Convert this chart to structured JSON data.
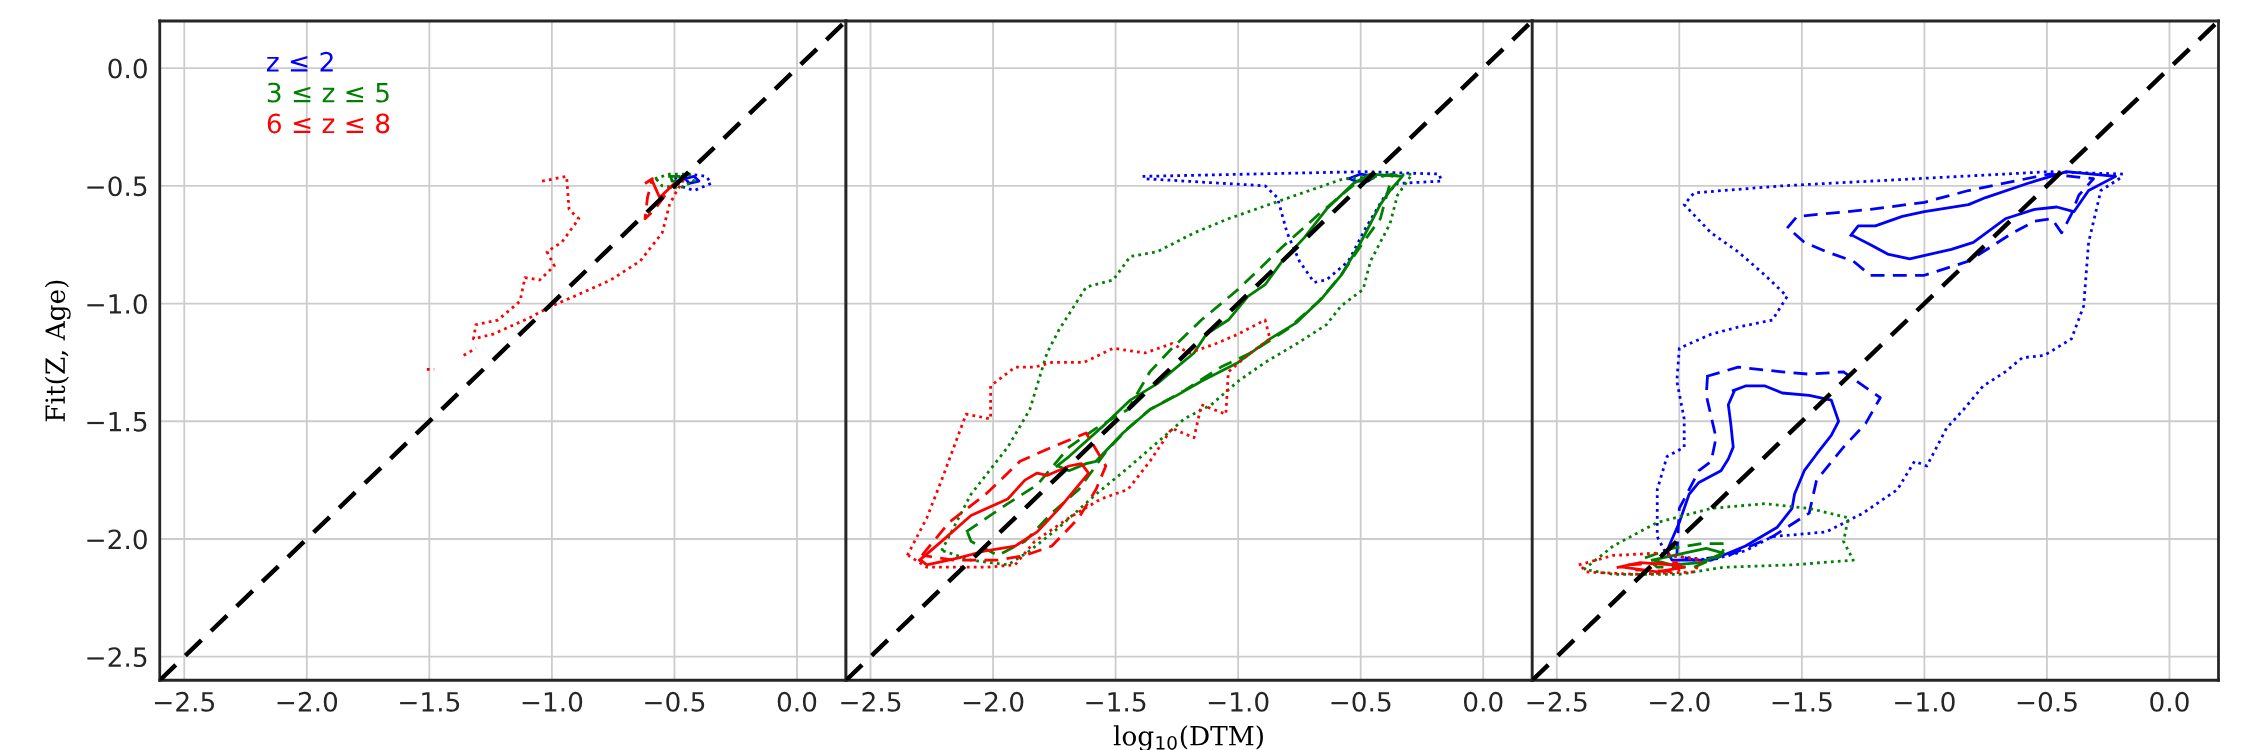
{
  "chart_data": [
    {
      "type": "line",
      "ylabel": "Fit(Z, Age)",
      "xlim": [
        -2.6,
        0.2
      ],
      "ylim": [
        -2.6,
        0.2
      ],
      "xticks": [
        {
          "value": -2.5,
          "label": "−2.5"
        },
        {
          "value": -2,
          "label": "−2.0"
        },
        {
          "value": -1.5,
          "label": "−1.5"
        },
        {
          "value": -1,
          "label": "−1.0"
        },
        {
          "value": -0.5,
          "label": "−0.5"
        },
        {
          "value": 0,
          "label": "0.0"
        }
      ],
      "yticks": [
        {
          "value": -2.5,
          "label": "−2.5"
        },
        {
          "value": -2,
          "label": "−2.0"
        },
        {
          "value": -1.5,
          "label": "−1.5"
        },
        {
          "value": -1,
          "label": "−1.0"
        },
        {
          "value": -0.5,
          "label": "−0.5"
        },
        {
          "value": 0,
          "label": "0.0"
        }
      ],
      "grid": true,
      "legend": "top left",
      "series": [
        {
          "color": "#000000",
          "line_style": "dashed",
          "x": [
            -2.6,
            0.2
          ],
          "values": [
            -2.6,
            0.2
          ]
        },
        {
          "name": "z ≤ 2",
          "color": "#0000ff",
          "line_style": "dotted",
          "x": [
            -0.5,
            -0.44,
            -0.37,
            -0.35,
            -0.42,
            -0.48,
            -0.495
          ],
          "values": [
            -0.47,
            -0.45,
            -0.46,
            -0.49,
            -0.52,
            -0.5,
            -0.47
          ]
        },
        {
          "color": "#0000ff",
          "line_style": "solid",
          "x": [
            -0.46,
            -0.42,
            -0.4,
            -0.44,
            -0.455
          ],
          "values": [
            -0.47,
            -0.46,
            -0.48,
            -0.49,
            -0.47
          ]
        },
        {
          "name": "3 ≤ z ≤ 5",
          "color": "#008000",
          "line_style": "dotted",
          "x": [
            -0.58,
            -0.52,
            -0.44,
            -0.42,
            -0.48,
            -0.55,
            -0.575
          ],
          "values": [
            -0.47,
            -0.45,
            -0.45,
            -0.48,
            -0.51,
            -0.5,
            -0.47
          ]
        },
        {
          "color": "#008000",
          "line_style": "solid",
          "x": [
            -0.52,
            -0.48,
            -0.47,
            -0.51,
            -0.515
          ],
          "values": [
            -0.46,
            -0.46,
            -0.48,
            -0.48,
            -0.46
          ]
        },
        {
          "name": "6 ≤ z ≤ 8",
          "color": "#ff0000",
          "line_style": "dotted",
          "x": [
            -1.04,
            -0.94,
            -0.93,
            -0.89,
            -0.96,
            -1.02,
            -0.99,
            -1.05,
            -1.11,
            -1.13,
            -1.22,
            -1.31,
            -1.32,
            -1.24,
            -1.09,
            -1.0,
            -0.91,
            -0.76,
            -0.64,
            -0.55,
            -0.52,
            -0.49,
            -0.46
          ],
          "values": [
            -0.48,
            -0.46,
            -0.6,
            -0.64,
            -0.74,
            -0.78,
            -0.84,
            -0.9,
            -0.89,
            -0.99,
            -1.07,
            -1.09,
            -1.15,
            -1.13,
            -1.06,
            -1.01,
            -0.97,
            -0.9,
            -0.82,
            -0.7,
            -0.58,
            -0.52,
            -0.47
          ]
        },
        {
          "color": "#ff0000",
          "line_style": "dotted",
          "x": [
            -1.36,
            -1.31
          ],
          "values": [
            -1.22,
            -1.19
          ]
        },
        {
          "color": "#ff0000",
          "line_style": "dotted",
          "x": [
            -1.51,
            -1.48
          ],
          "values": [
            -1.28,
            -1.28
          ]
        },
        {
          "color": "#ff0000",
          "line_style": "dashed",
          "x": [
            -0.62,
            -0.59,
            -0.61,
            -0.62,
            -0.58,
            -0.51
          ],
          "values": [
            -0.49,
            -0.47,
            -0.55,
            -0.64,
            -0.6,
            -0.5
          ]
        },
        {
          "color": "#ff0000",
          "line_style": "solid",
          "x": [
            -0.59,
            -0.56,
            -0.5
          ],
          "values": [
            -0.48,
            -0.55,
            -0.49
          ]
        }
      ]
    },
    {
      "type": "line",
      "xlabel": "log$_{10}$(DTM)",
      "xlim": [
        -2.6,
        0.2
      ],
      "ylim": [
        -2.6,
        0.2
      ],
      "xticks": [
        {
          "value": -2.5,
          "label": "−2.5"
        },
        {
          "value": -2,
          "label": "−2.0"
        },
        {
          "value": -1.5,
          "label": "−1.5"
        },
        {
          "value": -1,
          "label": "−1.0"
        },
        {
          "value": -0.5,
          "label": "−0.5"
        },
        {
          "value": 0,
          "label": "0.0"
        }
      ],
      "yticks": [
        -2.5,
        -2,
        -1.5,
        -1,
        -0.5,
        0
      ],
      "grid": true,
      "tick_labels": "x",
      "series": [
        {
          "color": "#000000",
          "line_style": "dashed",
          "x": [
            -2.6,
            0.2
          ],
          "values": [
            -2.6,
            0.2
          ]
        },
        {
          "color": "#0000ff",
          "line_style": "dotted",
          "x": [
            -1.39,
            -0.49,
            -0.18,
            -0.17,
            -0.35,
            -0.4,
            -0.48,
            -0.55,
            -0.64,
            -0.69,
            -0.75,
            -0.8,
            -0.84,
            -0.89,
            -1.38
          ],
          "values": [
            -0.46,
            -0.44,
            -0.45,
            -0.48,
            -0.49,
            -0.54,
            -0.68,
            -0.82,
            -0.9,
            -0.91,
            -0.82,
            -0.7,
            -0.55,
            -0.5,
            -0.47
          ]
        },
        {
          "color": "#0000ff",
          "line_style": "solid",
          "x": [
            -0.55,
            -0.5,
            -0.44,
            -0.47,
            -0.52,
            -0.545
          ],
          "values": [
            -0.47,
            -0.45,
            -0.46,
            -0.48,
            -0.48,
            -0.47
          ]
        },
        {
          "color": "#008000",
          "line_style": "dotted",
          "x": [
            -2.21,
            -2.09,
            -1.94,
            -1.85,
            -1.78,
            -1.73,
            -1.62,
            -1.51,
            -1.44,
            -1.33,
            -1.18,
            -1.04,
            -0.82,
            -0.57,
            -0.29,
            -0.35,
            -0.38,
            -0.46,
            -0.49,
            -0.58,
            -0.64,
            -0.76,
            -0.89,
            -1.0,
            -1.11,
            -1.22,
            -1.33,
            -1.44,
            -1.58,
            -1.73,
            -1.85,
            -1.94,
            -2.09,
            -2.205
          ],
          "values": [
            -2.05,
            -1.81,
            -1.61,
            -1.45,
            -1.21,
            -1.11,
            -0.93,
            -0.9,
            -0.8,
            -0.78,
            -0.7,
            -0.64,
            -0.56,
            -0.47,
            -0.45,
            -0.54,
            -0.66,
            -0.82,
            -0.94,
            -1.01,
            -1.09,
            -1.17,
            -1.25,
            -1.33,
            -1.43,
            -1.49,
            -1.59,
            -1.69,
            -1.81,
            -1.95,
            -2.05,
            -2.11,
            -2.09,
            -2.05
          ]
        },
        {
          "color": "#008000",
          "line_style": "dashed",
          "x": [
            -2.11,
            -1.94,
            -1.82,
            -1.69,
            -1.58,
            -1.45,
            -1.36,
            -1.27,
            -1.15,
            -1.0,
            -0.82,
            -0.67,
            -0.51,
            -0.37,
            -0.42,
            -0.49,
            -0.58,
            -0.67,
            -0.8,
            -0.95,
            -1.07,
            -1.22,
            -1.36,
            -1.45,
            -1.54,
            -1.65,
            -1.76,
            -1.87,
            -1.98,
            -2.09,
            -2.105
          ],
          "values": [
            -1.97,
            -1.85,
            -1.77,
            -1.61,
            -1.53,
            -1.45,
            -1.29,
            -1.19,
            -1.07,
            -0.94,
            -0.76,
            -0.62,
            -0.48,
            -0.45,
            -0.64,
            -0.74,
            -0.88,
            -0.99,
            -1.11,
            -1.21,
            -1.27,
            -1.37,
            -1.45,
            -1.53,
            -1.63,
            -1.79,
            -1.89,
            -2.01,
            -2.07,
            -2.01,
            -1.97
          ]
        },
        {
          "color": "#008000",
          "line_style": "solid",
          "x": [
            -1.74,
            -1.69,
            -1.54,
            -1.44,
            -1.33,
            -1.25,
            -1.18,
            -1.13,
            -1.04,
            -0.96,
            -0.89,
            -0.82,
            -0.73,
            -0.64,
            -0.53,
            -0.46,
            -0.33,
            -0.38,
            -0.42,
            -0.46,
            -0.51,
            -0.58,
            -0.66,
            -0.76,
            -0.87,
            -1.0,
            -1.15,
            -1.25,
            -1.36,
            -1.47,
            -1.58,
            -1.62,
            -1.69,
            -1.735
          ],
          "values": [
            -1.69,
            -1.65,
            -1.51,
            -1.41,
            -1.34,
            -1.27,
            -1.21,
            -1.13,
            -1.07,
            -0.97,
            -0.92,
            -0.82,
            -0.72,
            -0.6,
            -0.49,
            -0.45,
            -0.46,
            -0.52,
            -0.58,
            -0.66,
            -0.76,
            -0.88,
            -0.98,
            -1.08,
            -1.15,
            -1.25,
            -1.33,
            -1.39,
            -1.45,
            -1.55,
            -1.67,
            -1.68,
            -1.71,
            -1.69
          ]
        },
        {
          "color": "#ff0000",
          "line_style": "dotted",
          "x": [
            -2.35,
            -2.27,
            -2.21,
            -2.11,
            -2.01,
            -2.01,
            -1.91,
            -1.83,
            -1.76,
            -1.63,
            -1.51,
            -1.38,
            -1.27,
            -1.2,
            -1.09,
            -1.0,
            -0.89,
            -0.87,
            -0.95,
            -1.04,
            -1.05,
            -1.15,
            -1.18,
            -1.27,
            -1.36,
            -1.45,
            -1.56,
            -1.69,
            -1.83,
            -1.91,
            -2.03,
            -2.27,
            -2.345
          ],
          "values": [
            -2.07,
            -1.91,
            -1.75,
            -1.47,
            -1.49,
            -1.35,
            -1.27,
            -1.27,
            -1.25,
            -1.25,
            -1.19,
            -1.21,
            -1.17,
            -1.21,
            -1.17,
            -1.13,
            -1.07,
            -1.15,
            -1.21,
            -1.29,
            -1.47,
            -1.43,
            -1.57,
            -1.53,
            -1.67,
            -1.79,
            -1.83,
            -1.91,
            -2.01,
            -2.11,
            -2.12,
            -2.12,
            -2.07
          ]
        },
        {
          "color": "#ff0000",
          "line_style": "dashed",
          "x": [
            -2.29,
            -2.18,
            -2.03,
            -1.89,
            -1.76,
            -1.62,
            -1.54,
            -1.58,
            -1.65,
            -1.76,
            -1.87,
            -1.98,
            -2.16,
            -2.285
          ],
          "values": [
            -2.07,
            -1.93,
            -1.81,
            -1.67,
            -1.61,
            -1.55,
            -1.69,
            -1.79,
            -1.91,
            -2.03,
            -2.07,
            -2.09,
            -2.09,
            -2.07
          ]
        },
        {
          "color": "#ff0000",
          "line_style": "solid",
          "x": [
            -2.3,
            -2.21,
            -2.09,
            -1.94,
            -1.87,
            -1.82,
            -1.78,
            -1.69,
            -1.64,
            -1.61,
            -1.65,
            -1.73,
            -1.82,
            -1.91,
            -2.03,
            -2.14,
            -2.27,
            -2.295
          ],
          "values": [
            -2.09,
            -2.01,
            -1.9,
            -1.83,
            -1.75,
            -1.72,
            -1.73,
            -1.69,
            -1.68,
            -1.72,
            -1.77,
            -1.87,
            -1.97,
            -2.03,
            -2.05,
            -2.08,
            -2.11,
            -2.09
          ]
        }
      ]
    },
    {
      "type": "line",
      "xlim": [
        -2.6,
        0.2
      ],
      "ylim": [
        -2.6,
        0.2
      ],
      "xticks": [
        {
          "value": -2.5,
          "label": "−2.5"
        },
        {
          "value": -2,
          "label": "−2.0"
        },
        {
          "value": -1.5,
          "label": "−1.5"
        },
        {
          "value": -1,
          "label": "−1.0"
        },
        {
          "value": -0.5,
          "label": "−0.5"
        },
        {
          "value": 0,
          "label": "0.0"
        }
      ],
      "yticks": [
        -2.5,
        -2,
        -1.5,
        -1,
        -0.5,
        0
      ],
      "grid": true,
      "tick_labels": "x",
      "series": [
        {
          "color": "#000000",
          "line_style": "dashed",
          "x": [
            -2.6,
            0.2
          ],
          "values": [
            -2.6,
            0.2
          ]
        },
        {
          "color": "#0000ff",
          "line_style": "dotted",
          "x": [
            -0.19,
            -0.49,
            -1.58,
            -1.94,
            -1.98,
            -1.87,
            -1.76,
            -1.65,
            -1.56,
            -1.62,
            -1.76,
            -1.87,
            -2.0,
            -2.01,
            -1.98,
            -1.98,
            -2.05,
            -2.09,
            -2.09,
            -2.05,
            -1.87,
            -1.73,
            -1.62,
            -1.4,
            -1.25,
            -1.11,
            -1.04,
            -0.99,
            -0.91,
            -0.84,
            -0.76,
            -0.67,
            -0.6,
            -0.51,
            -0.4,
            -0.35,
            -0.33,
            -0.28,
            -0.19
          ],
          "values": [
            -0.45,
            -0.44,
            -0.5,
            -0.53,
            -0.58,
            -0.7,
            -0.78,
            -0.88,
            -0.97,
            -1.07,
            -1.1,
            -1.13,
            -1.19,
            -1.33,
            -1.49,
            -1.61,
            -1.65,
            -1.79,
            -1.99,
            -2.07,
            -2.09,
            -2.05,
            -1.99,
            -1.97,
            -1.89,
            -1.79,
            -1.67,
            -1.69,
            -1.53,
            -1.45,
            -1.35,
            -1.29,
            -1.23,
            -1.22,
            -1.15,
            -1.01,
            -0.74,
            -0.52,
            -0.46
          ]
        },
        {
          "color": "#0000ff",
          "line_style": "dashed",
          "x": [
            -1.56,
            -1.52,
            -1.22,
            -1.0,
            -0.82,
            -0.49,
            -0.31,
            -0.37,
            -0.4,
            -0.44,
            -0.48,
            -0.55,
            -0.64,
            -0.82,
            -1.0,
            -1.22,
            -1.29,
            -1.4,
            -1.49,
            -1.555
          ],
          "values": [
            -0.68,
            -0.63,
            -0.6,
            -0.57,
            -0.52,
            -0.45,
            -0.47,
            -0.54,
            -0.62,
            -0.7,
            -0.64,
            -0.65,
            -0.7,
            -0.82,
            -0.88,
            -0.88,
            -0.82,
            -0.78,
            -0.74,
            -0.68
          ]
        },
        {
          "color": "#0000ff",
          "line_style": "dashed",
          "x": [
            -1.89,
            -1.76,
            -1.58,
            -1.47,
            -1.33,
            -1.18,
            -1.24,
            -1.33,
            -1.44,
            -1.47,
            -1.62,
            -1.8,
            -1.94,
            -2.01,
            -2.0,
            -1.92,
            -1.87,
            -1.85,
            -1.89,
            -1.885
          ],
          "values": [
            -1.31,
            -1.27,
            -1.29,
            -1.3,
            -1.29,
            -1.4,
            -1.51,
            -1.61,
            -1.75,
            -1.89,
            -1.99,
            -2.07,
            -2.09,
            -2.07,
            -1.87,
            -1.71,
            -1.67,
            -1.57,
            -1.39,
            -1.31
          ]
        },
        {
          "color": "#0000ff",
          "line_style": "solid",
          "x": [
            -1.3,
            -1.27,
            -1.2,
            -1.09,
            -1.0,
            -0.82,
            -0.75,
            -0.58,
            -0.42,
            -0.22,
            -0.33,
            -0.39,
            -0.46,
            -0.55,
            -0.67,
            -0.8,
            -0.89,
            -1.06,
            -1.15,
            -1.22,
            -1.295
          ],
          "values": [
            -0.71,
            -0.67,
            -0.67,
            -0.63,
            -0.61,
            -0.58,
            -0.55,
            -0.49,
            -0.44,
            -0.46,
            -0.52,
            -0.61,
            -0.59,
            -0.6,
            -0.64,
            -0.74,
            -0.77,
            -0.81,
            -0.79,
            -0.75,
            -0.71
          ]
        },
        {
          "color": "#0000ff",
          "line_style": "solid",
          "x": [
            -1.78,
            -1.73,
            -1.65,
            -1.58,
            -1.47,
            -1.38,
            -1.35,
            -1.38,
            -1.44,
            -1.49,
            -1.53,
            -1.54,
            -1.6,
            -1.73,
            -1.87,
            -2.03,
            -2.05,
            -2.0,
            -1.96,
            -1.92,
            -1.83,
            -1.8,
            -1.78,
            -1.79,
            -1.8,
            -1.775
          ],
          "values": [
            -1.37,
            -1.35,
            -1.35,
            -1.38,
            -1.39,
            -1.41,
            -1.5,
            -1.56,
            -1.64,
            -1.71,
            -1.81,
            -1.87,
            -1.95,
            -2.03,
            -2.09,
            -2.09,
            -2.05,
            -1.93,
            -1.81,
            -1.76,
            -1.71,
            -1.66,
            -1.61,
            -1.51,
            -1.43,
            -1.37
          ]
        },
        {
          "color": "#008000",
          "line_style": "dotted",
          "x": [
            -2.39,
            -2.27,
            -2.09,
            -1.87,
            -1.65,
            -1.47,
            -1.31,
            -1.33,
            -1.29,
            -1.54,
            -1.82,
            -2.0,
            -2.27,
            -2.385
          ],
          "values": [
            -2.13,
            -2.03,
            -1.93,
            -1.87,
            -1.85,
            -1.87,
            -1.91,
            -2.01,
            -2.09,
            -2.11,
            -2.12,
            -2.15,
            -2.15,
            -2.13
          ]
        },
        {
          "color": "#008000",
          "line_style": "dashed",
          "x": [
            -2.14,
            -2.03,
            -1.91,
            -1.81,
            -1.83,
            -1.94,
            -2.09,
            -2.135
          ],
          "values": [
            -2.08,
            -2.04,
            -2.02,
            -2.02,
            -2.07,
            -2.12,
            -2.12,
            -2.08
          ]
        },
        {
          "color": "#008000",
          "line_style": "solid",
          "x": [
            -2.11,
            -1.98,
            -1.89,
            -1.82,
            -1.91,
            -2.03,
            -2.105
          ],
          "values": [
            -2.09,
            -2.06,
            -2.04,
            -2.06,
            -2.1,
            -2.11,
            -2.09
          ]
        },
        {
          "color": "#ff0000",
          "line_style": "dotted",
          "x": [
            -2.41,
            -2.27,
            -2.09,
            -1.91,
            -1.94,
            -2.18,
            -2.38,
            -2.405
          ],
          "values": [
            -2.11,
            -2.07,
            -2.06,
            -2.09,
            -2.14,
            -2.15,
            -2.14,
            -2.11
          ]
        },
        {
          "color": "#ff0000",
          "line_style": "dashed",
          "x": [
            -2.21,
            -2.01,
            -2.0,
            -2.2,
            -2.205
          ],
          "values": [
            -2.11,
            -2.1,
            -2.14,
            -2.13,
            -2.11
          ]
        },
        {
          "color": "#ff0000",
          "line_style": "solid",
          "x": [
            -2.25,
            -2.16,
            -2.03,
            -1.98,
            -2.09,
            -2.23,
            -2.245
          ],
          "values": [
            -2.12,
            -2.1,
            -2.11,
            -2.12,
            -2.14,
            -2.12,
            -2.12
          ]
        }
      ]
    }
  ]
}
